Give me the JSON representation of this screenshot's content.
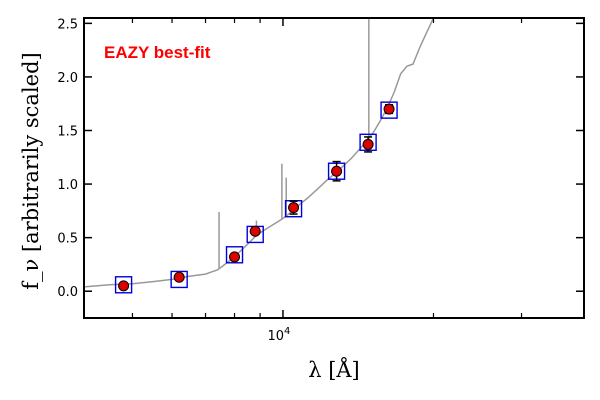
{
  "chart_data": {
    "type": "scatter",
    "annotation": "EAZY best-fit",
    "annotation_color": "#ff0000",
    "ylabel": "f_ν [arbitrarily scaled]",
    "xlabel": "λ [Å]",
    "x_scale": "log",
    "xlim": [
      4000,
      40000
    ],
    "ylim": [
      -0.25,
      2.55
    ],
    "y_ticks": [
      0.0,
      0.5,
      1.0,
      1.5,
      2.0,
      2.5
    ],
    "y_tick_labels": [
      "0.0",
      "0.5",
      "1.0",
      "1.5",
      "2.0",
      "2.5"
    ],
    "x_major_ticks": [
      10000
    ],
    "x_major_tick_labels": [
      "10^4"
    ],
    "x_minor_ticks": [
      5000,
      6000,
      7000,
      8000,
      9000,
      20000,
      30000
    ],
    "grid": false,
    "observed": {
      "marker": "circle",
      "color": "#dd0000",
      "points": [
        {
          "x": 4800,
          "y": 0.05,
          "err": 0.02
        },
        {
          "x": 6200,
          "y": 0.13,
          "err": 0.02
        },
        {
          "x": 8000,
          "y": 0.32,
          "err": 0.02
        },
        {
          "x": 8800,
          "y": 0.56,
          "err": 0.03
        },
        {
          "x": 10500,
          "y": 0.78,
          "err": 0.06
        },
        {
          "x": 12800,
          "y": 1.12,
          "err": 0.09
        },
        {
          "x": 14800,
          "y": 1.37,
          "err": 0.07
        },
        {
          "x": 16300,
          "y": 1.7,
          "err": 0.04
        }
      ]
    },
    "model_photometry": {
      "marker": "square",
      "color": "#0000dd",
      "points": [
        {
          "x": 4800,
          "y": 0.06
        },
        {
          "x": 6200,
          "y": 0.11
        },
        {
          "x": 8000,
          "y": 0.34
        },
        {
          "x": 8800,
          "y": 0.53
        },
        {
          "x": 10500,
          "y": 0.77
        },
        {
          "x": 12800,
          "y": 1.12
        },
        {
          "x": 14800,
          "y": 1.39
        },
        {
          "x": 16300,
          "y": 1.69
        }
      ]
    },
    "sed_model": {
      "color": "#999999",
      "x": [
        4000,
        4500,
        5000,
        5500,
        6000,
        6500,
        7000,
        7200,
        7400,
        7600,
        7900,
        8200,
        8500,
        8800,
        9100,
        9400,
        9700,
        10000,
        10400,
        10800,
        11200,
        11700,
        12200,
        12700,
        13200,
        13700,
        14200,
        14700,
        15200,
        15700,
        16200,
        16700,
        17200,
        17700,
        18200,
        18800,
        19400,
        20000
      ],
      "y": [
        0.04,
        0.06,
        0.07,
        0.09,
        0.11,
        0.14,
        0.16,
        0.18,
        0.2,
        0.24,
        0.3,
        0.37,
        0.44,
        0.51,
        0.56,
        0.6,
        0.64,
        0.68,
        0.74,
        0.81,
        0.87,
        0.95,
        1.03,
        1.1,
        1.17,
        1.24,
        1.32,
        1.4,
        1.49,
        1.6,
        1.72,
        1.86,
        2.03,
        2.1,
        2.12,
        2.28,
        2.42,
        2.55
      ],
      "emission_lines": [
        {
          "x": 7450,
          "peak": 0.74
        },
        {
          "x": 8850,
          "peak": 0.66
        },
        {
          "x": 9950,
          "peak": 1.19
        },
        {
          "x": 10150,
          "peak": 1.06
        },
        {
          "x": 14850,
          "peak": 2.6
        }
      ]
    }
  }
}
